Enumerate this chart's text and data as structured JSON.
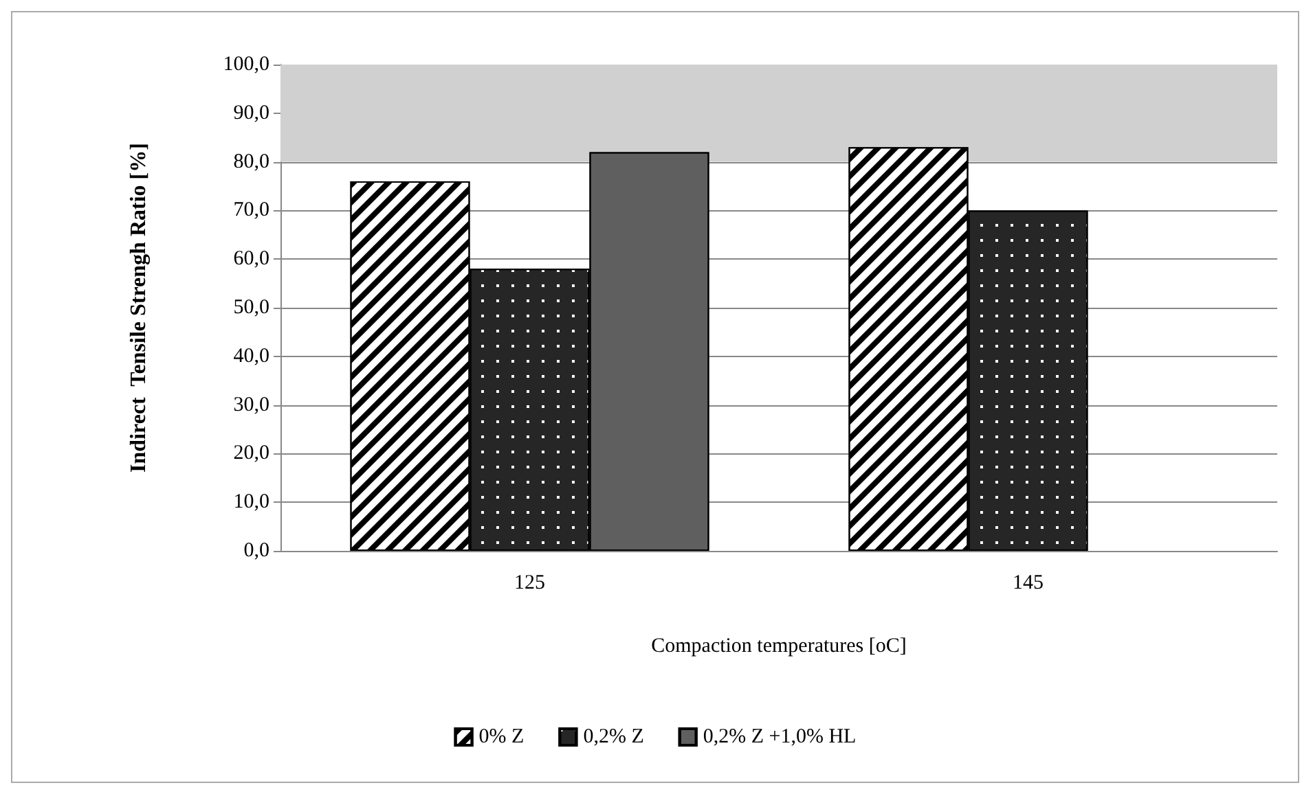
{
  "chart_data": {
    "type": "bar",
    "xlabel": "Compaction temperatures [oC]",
    "ylabel": "Indirect  Tensile Strengh Ratio [%]",
    "categories": [
      "125",
      "145"
    ],
    "series": [
      {
        "name": "0% Z",
        "color": "#ffffff",
        "values": [
          76,
          83
        ]
      },
      {
        "name": "0,2% Z",
        "color": "#262626",
        "values": [
          58,
          70
        ]
      },
      {
        "name": "0,2% Z +1,0% HL",
        "color": "#5f5f5f",
        "values": [
          82,
          null
        ]
      }
    ],
    "ylim": [
      0,
      100
    ],
    "yticks": [
      {
        "value": 0,
        "label": "0,0"
      },
      {
        "value": 10,
        "label": "10,0"
      },
      {
        "value": 20,
        "label": "20,0"
      },
      {
        "value": 30,
        "label": "30,0"
      },
      {
        "value": 40,
        "label": "40,0"
      },
      {
        "value": 50,
        "label": "50,0"
      },
      {
        "value": 60,
        "label": "60,0"
      },
      {
        "value": 70,
        "label": "70,0"
      },
      {
        "value": 80,
        "label": "80,0"
      },
      {
        "value": 90,
        "label": "90,0"
      },
      {
        "value": 100,
        "label": "100,0"
      }
    ],
    "bands": [
      {
        "axis": "y",
        "from": 80,
        "to": 100,
        "color": "#d0d0d0"
      }
    ],
    "grid": "y",
    "legend": "bottom"
  }
}
